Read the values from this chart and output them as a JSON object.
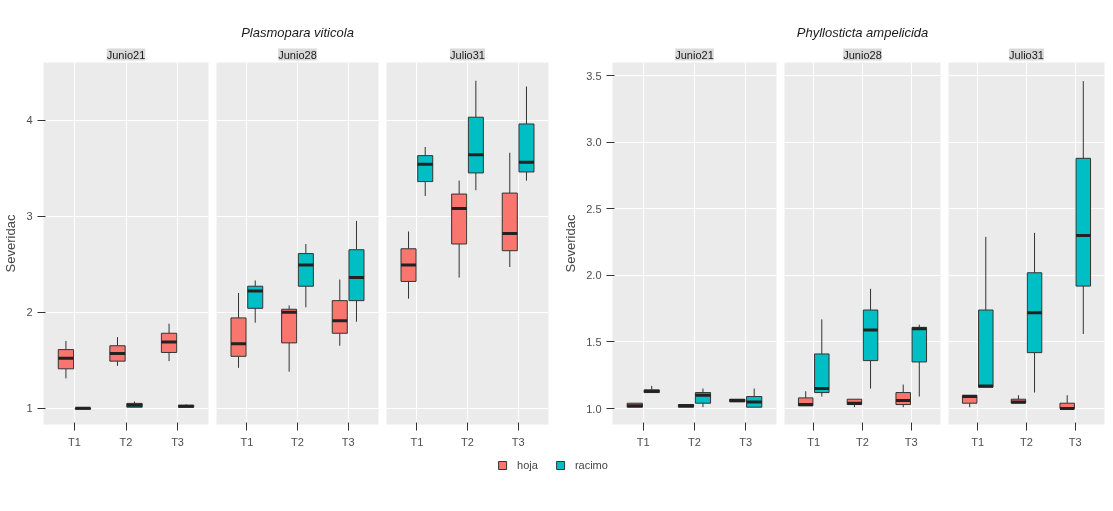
{
  "chart_data": [
    {
      "type": "box",
      "subtitle": "Junio21",
      "ylabel": "Severidac",
      "categories": [
        "T1",
        "T2",
        "T3"
      ],
      "ylim": [
        0.83,
        4.6
      ],
      "yticks": [
        1,
        2,
        3,
        4
      ],
      "grid": true,
      "series": [
        {
          "color": "#f8766d",
          "boxes": [
            {
              "low": 1.31,
              "q1": 1.41,
              "median": 1.52,
              "q3": 1.61,
              "high": 1.7
            },
            {
              "low": 1.44,
              "q1": 1.49,
              "median": 1.57,
              "q3": 1.65,
              "high": 1.74
            },
            {
              "low": 1.49,
              "q1": 1.58,
              "median": 1.69,
              "q3": 1.78,
              "high": 1.88
            }
          ]
        },
        {
          "color": "#00bfc4",
          "boxes": [
            {
              "low": 0.99,
              "q1": 0.99,
              "median": 1.0,
              "q3": 1.0,
              "high": 1.01
            },
            {
              "low": 1.01,
              "q1": 1.01,
              "median": 1.03,
              "q3": 1.05,
              "high": 1.07
            },
            {
              "low": 1.01,
              "q1": 1.01,
              "median": 1.02,
              "q3": 1.03,
              "high": 1.04
            }
          ]
        }
      ]
    },
    {
      "type": "box",
      "title": "Plasmopara viticola",
      "subtitle": "Junio28",
      "categories": [
        "T1",
        "T2",
        "T3"
      ],
      "ylim": [
        0.83,
        4.6
      ],
      "yticks": [
        1,
        2,
        3,
        4
      ],
      "grid": true,
      "tick_labels": "x",
      "series": [
        {
          "color": "#f8766d",
          "boxes": [
            {
              "low": 1.42,
              "q1": 1.54,
              "median": 1.67,
              "q3": 1.94,
              "high": 2.2
            },
            {
              "low": 1.38,
              "q1": 1.68,
              "median": 2.0,
              "q3": 2.03,
              "high": 2.07
            },
            {
              "low": 1.65,
              "q1": 1.78,
              "median": 1.91,
              "q3": 2.12,
              "high": 2.34
            }
          ]
        },
        {
          "color": "#00bfc4",
          "boxes": [
            {
              "low": 1.89,
              "q1": 2.04,
              "median": 2.22,
              "q3": 2.27,
              "high": 2.33
            },
            {
              "low": 2.05,
              "q1": 2.27,
              "median": 2.49,
              "q3": 2.61,
              "high": 2.71
            },
            {
              "low": 1.9,
              "q1": 2.12,
              "median": 2.36,
              "q3": 2.65,
              "high": 2.95
            }
          ]
        }
      ]
    },
    {
      "type": "box",
      "subtitle": "Julio31",
      "categories": [
        "T1",
        "T2",
        "T3"
      ],
      "ylim": [
        0.83,
        4.6
      ],
      "yticks": [
        1,
        2,
        3,
        4
      ],
      "grid": true,
      "tick_labels": "x",
      "legend": "bottom",
      "series": [
        {
          "name": "hoja",
          "color": "#f8766d",
          "boxes": [
            {
              "low": 2.14,
              "q1": 2.32,
              "median": 2.49,
              "q3": 2.66,
              "high": 2.84
            },
            {
              "low": 2.36,
              "q1": 2.71,
              "median": 3.08,
              "q3": 3.23,
              "high": 3.37
            },
            {
              "low": 2.47,
              "q1": 2.64,
              "median": 2.82,
              "q3": 3.24,
              "high": 3.66
            }
          ]
        },
        {
          "name": "racimo",
          "color": "#00bfc4",
          "boxes": [
            {
              "low": 3.21,
              "q1": 3.36,
              "median": 3.54,
              "q3": 3.63,
              "high": 3.72
            },
            {
              "low": 3.27,
              "q1": 3.45,
              "median": 3.64,
              "q3": 4.03,
              "high": 4.41
            },
            {
              "low": 3.37,
              "q1": 3.46,
              "median": 3.56,
              "q3": 3.96,
              "high": 4.35
            }
          ]
        }
      ]
    },
    {
      "type": "box",
      "subtitle": "Junio21",
      "ylabel": "Severidac",
      "categories": [
        "T1",
        "T2",
        "T3"
      ],
      "ylim": [
        0.88,
        3.6
      ],
      "yticks": [
        {
          "value": 1,
          "label": "1.0"
        },
        1.5,
        {
          "value": 2,
          "label": "2.0"
        },
        2.5,
        {
          "value": 3,
          "label": "3.0"
        },
        3.5
      ],
      "grid": true,
      "series": [
        {
          "color": "#f8766d",
          "boxes": [
            {
              "low": 1.01,
              "q1": 1.01,
              "median": 1.02,
              "q3": 1.04,
              "high": 1.04
            },
            {
              "low": 1.01,
              "q1": 1.01,
              "median": 1.02,
              "q3": 1.03,
              "high": 1.03
            },
            {
              "low": 1.05,
              "q1": 1.05,
              "median": 1.06,
              "q3": 1.07,
              "high": 1.07
            }
          ]
        },
        {
          "color": "#00bfc4",
          "boxes": [
            {
              "low": 1.12,
              "q1": 1.12,
              "median": 1.13,
              "q3": 1.14,
              "high": 1.17
            },
            {
              "low": 1.01,
              "q1": 1.04,
              "median": 1.1,
              "q3": 1.12,
              "high": 1.15
            },
            {
              "low": 1.01,
              "q1": 1.01,
              "median": 1.05,
              "q3": 1.09,
              "high": 1.15
            }
          ]
        }
      ]
    },
    {
      "type": "box",
      "title": "Phyllosticta ampelicida",
      "subtitle": "Junio28",
      "categories": [
        "T1",
        "T2",
        "T3"
      ],
      "ylim": [
        0.88,
        3.6
      ],
      "yticks": [
        1,
        1.5,
        2,
        2.5,
        3,
        3.5
      ],
      "grid": true,
      "tick_labels": "x",
      "series": [
        {
          "color": "#f8766d",
          "boxes": [
            {
              "low": 1.02,
              "q1": 1.02,
              "median": 1.03,
              "q3": 1.08,
              "high": 1.13
            },
            {
              "low": 1.01,
              "q1": 1.03,
              "median": 1.04,
              "q3": 1.07,
              "high": 1.07
            },
            {
              "low": 1.01,
              "q1": 1.03,
              "median": 1.06,
              "q3": 1.12,
              "high": 1.18
            }
          ]
        },
        {
          "color": "#00bfc4",
          "boxes": [
            {
              "low": 1.09,
              "q1": 1.12,
              "median": 1.15,
              "q3": 1.41,
              "high": 1.67
            },
            {
              "low": 1.15,
              "q1": 1.36,
              "median": 1.59,
              "q3": 1.74,
              "high": 1.9
            },
            {
              "low": 1.09,
              "q1": 1.35,
              "median": 1.6,
              "q3": 1.61,
              "high": 1.63
            }
          ]
        }
      ]
    },
    {
      "type": "box",
      "subtitle": "Julio31",
      "categories": [
        "T1",
        "T2",
        "T3"
      ],
      "ylim": [
        0.88,
        3.6
      ],
      "yticks": [
        1,
        1.5,
        2,
        2.5,
        3,
        3.5
      ],
      "grid": true,
      "tick_labels": "x",
      "series": [
        {
          "color": "#f8766d",
          "boxes": [
            {
              "low": 1.01,
              "q1": 1.04,
              "median": 1.09,
              "q3": 1.1,
              "high": 1.1
            },
            {
              "low": 1.04,
              "q1": 1.04,
              "median": 1.05,
              "q3": 1.07,
              "high": 1.1
            },
            {
              "low": 1.0,
              "q1": 1.0,
              "median": 1.0,
              "q3": 1.04,
              "high": 1.1
            }
          ]
        },
        {
          "color": "#00bfc4",
          "boxes": [
            {
              "low": 1.16,
              "q1": 1.16,
              "median": 1.17,
              "q3": 1.74,
              "high": 2.29
            },
            {
              "low": 1.12,
              "q1": 1.42,
              "median": 1.72,
              "q3": 2.02,
              "high": 2.32
            },
            {
              "low": 1.56,
              "q1": 1.92,
              "median": 2.3,
              "q3": 2.88,
              "high": 3.46
            }
          ]
        }
      ]
    }
  ]
}
